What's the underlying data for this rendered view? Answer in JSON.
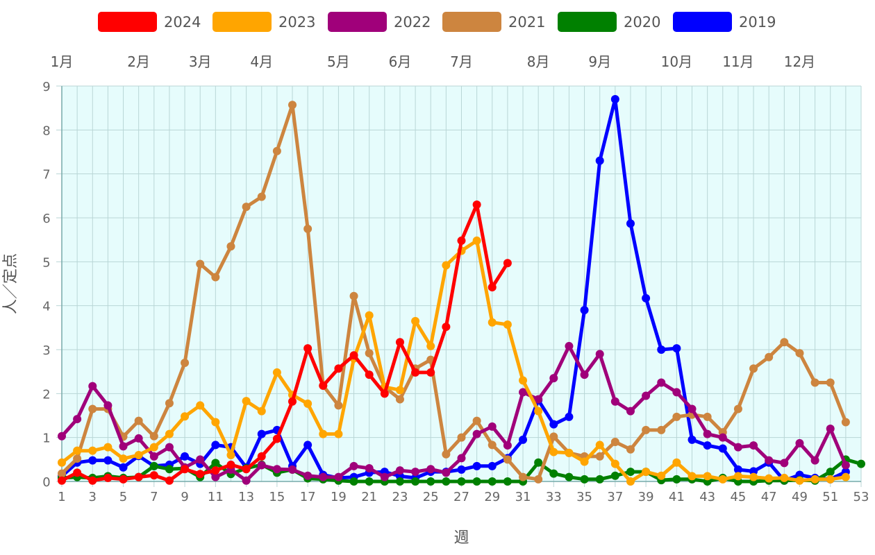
{
  "chart_data": {
    "type": "line",
    "xlabel": "週",
    "ylabel": "人／定点",
    "xlim": [
      1,
      53
    ],
    "ylim": [
      0,
      9
    ],
    "x_ticks": [
      1,
      3,
      5,
      7,
      9,
      11,
      13,
      15,
      17,
      19,
      21,
      23,
      25,
      27,
      29,
      31,
      33,
      35,
      37,
      39,
      41,
      43,
      45,
      47,
      49,
      51,
      53
    ],
    "y_ticks": [
      0,
      1,
      2,
      3,
      4,
      5,
      6,
      7,
      8,
      9
    ],
    "grid": true,
    "legend_position": "top",
    "months": [
      {
        "label": "1月",
        "week": 1
      },
      {
        "label": "2月",
        "week": 6
      },
      {
        "label": "3月",
        "week": 10
      },
      {
        "label": "4月",
        "week": 14
      },
      {
        "label": "5月",
        "week": 19
      },
      {
        "label": "6月",
        "week": 23
      },
      {
        "label": "7月",
        "week": 27
      },
      {
        "label": "8月",
        "week": 32
      },
      {
        "label": "9月",
        "week": 36
      },
      {
        "label": "10月",
        "week": 41
      },
      {
        "label": "11月",
        "week": 45
      },
      {
        "label": "12月",
        "week": 49
      }
    ],
    "series": [
      {
        "name": "2024",
        "color": "#ff0000",
        "values": [
          0.02,
          0.2,
          0.02,
          0.08,
          0.05,
          0.1,
          0.14,
          0.02,
          0.28,
          0.17,
          0.25,
          0.38,
          0.28,
          0.57,
          0.97,
          1.82,
          3.03,
          2.18,
          2.57,
          2.87,
          2.43,
          2.0,
          3.17,
          2.48,
          2.48,
          3.52,
          5.48,
          6.3,
          4.42,
          4.97
        ]
      },
      {
        "name": "2023",
        "color": "#ffa500",
        "values": [
          0.43,
          0.7,
          0.7,
          0.78,
          0.52,
          0.6,
          0.78,
          1.08,
          1.48,
          1.73,
          1.35,
          0.6,
          1.83,
          1.6,
          2.48,
          1.97,
          1.77,
          1.08,
          1.08,
          2.8,
          3.78,
          2.15,
          2.08,
          3.65,
          3.08,
          4.92,
          5.25,
          5.48,
          3.62,
          3.57,
          2.3,
          1.6,
          0.67,
          0.65,
          0.45,
          0.83,
          0.4,
          0.0,
          0.22,
          0.13,
          0.43,
          0.12,
          0.12,
          0.05,
          0.12,
          0.1,
          0.07,
          0.08,
          0.02,
          0.05,
          0.05,
          0.1
        ]
      },
      {
        "name": "2022",
        "color": "#a0007a",
        "values": [
          1.03,
          1.42,
          2.17,
          1.73,
          0.8,
          0.98,
          0.57,
          0.78,
          0.32,
          0.5,
          0.1,
          0.27,
          0.02,
          0.37,
          0.28,
          0.27,
          0.13,
          0.1,
          0.1,
          0.35,
          0.3,
          0.1,
          0.25,
          0.22,
          0.28,
          0.2,
          0.53,
          1.08,
          1.25,
          0.82,
          2.03,
          1.87,
          2.35,
          3.08,
          2.43,
          2.9,
          1.82,
          1.6,
          1.95,
          2.25,
          2.03,
          1.65,
          1.08,
          1.0,
          0.78,
          0.82,
          0.48,
          0.42,
          0.87,
          0.48,
          1.2,
          0.37
        ]
      },
      {
        "name": "2021",
        "color": "#cd853f",
        "values": [
          0.18,
          0.52,
          1.65,
          1.65,
          1.02,
          1.38,
          1.03,
          1.78,
          2.7,
          4.95,
          4.65,
          5.35,
          6.25,
          6.48,
          7.52,
          8.57,
          5.75,
          2.18,
          1.73,
          4.22,
          2.92,
          2.15,
          1.87,
          2.57,
          2.77,
          0.62,
          1.0,
          1.38,
          0.83,
          0.5,
          0.1,
          0.05,
          1.02,
          0.65,
          0.57,
          0.57,
          0.9,
          0.73,
          1.17,
          1.17,
          1.47,
          1.52,
          1.47,
          1.12,
          1.65,
          2.57,
          2.83,
          3.17,
          2.92,
          2.25,
          2.25,
          1.35
        ]
      },
      {
        "name": "2020",
        "color": "#008000",
        "values": [
          0.08,
          0.1,
          0.08,
          0.12,
          0.08,
          0.1,
          0.35,
          0.28,
          0.3,
          0.1,
          0.42,
          0.17,
          0.3,
          0.38,
          0.2,
          0.27,
          0.07,
          0.05,
          0.02,
          0.0,
          0.0,
          0.0,
          0.0,
          0.0,
          0.0,
          0.0,
          0.0,
          0.0,
          0.0,
          0.0,
          0.0,
          0.43,
          0.18,
          0.1,
          0.05,
          0.05,
          0.13,
          0.22,
          0.22,
          0.03,
          0.05,
          0.05,
          0.0,
          0.08,
          0.0,
          0.0,
          0.02,
          0.02,
          0.03,
          0.02,
          0.22,
          0.5,
          0.4
        ]
      },
      {
        "name": "2019",
        "color": "#0000ff",
        "values": [
          0.12,
          0.43,
          0.48,
          0.48,
          0.32,
          0.58,
          0.35,
          0.38,
          0.57,
          0.4,
          0.83,
          0.78,
          0.32,
          1.08,
          1.17,
          0.35,
          0.83,
          0.15,
          0.08,
          0.1,
          0.2,
          0.22,
          0.12,
          0.08,
          0.22,
          0.22,
          0.27,
          0.35,
          0.35,
          0.53,
          0.95,
          1.85,
          1.3,
          1.47,
          3.9,
          7.3,
          8.7,
          5.87,
          4.17,
          3.0,
          3.03,
          0.95,
          0.82,
          0.75,
          0.27,
          0.23,
          0.43,
          0.02,
          0.15,
          0.08,
          0.05,
          0.22
        ]
      }
    ]
  }
}
